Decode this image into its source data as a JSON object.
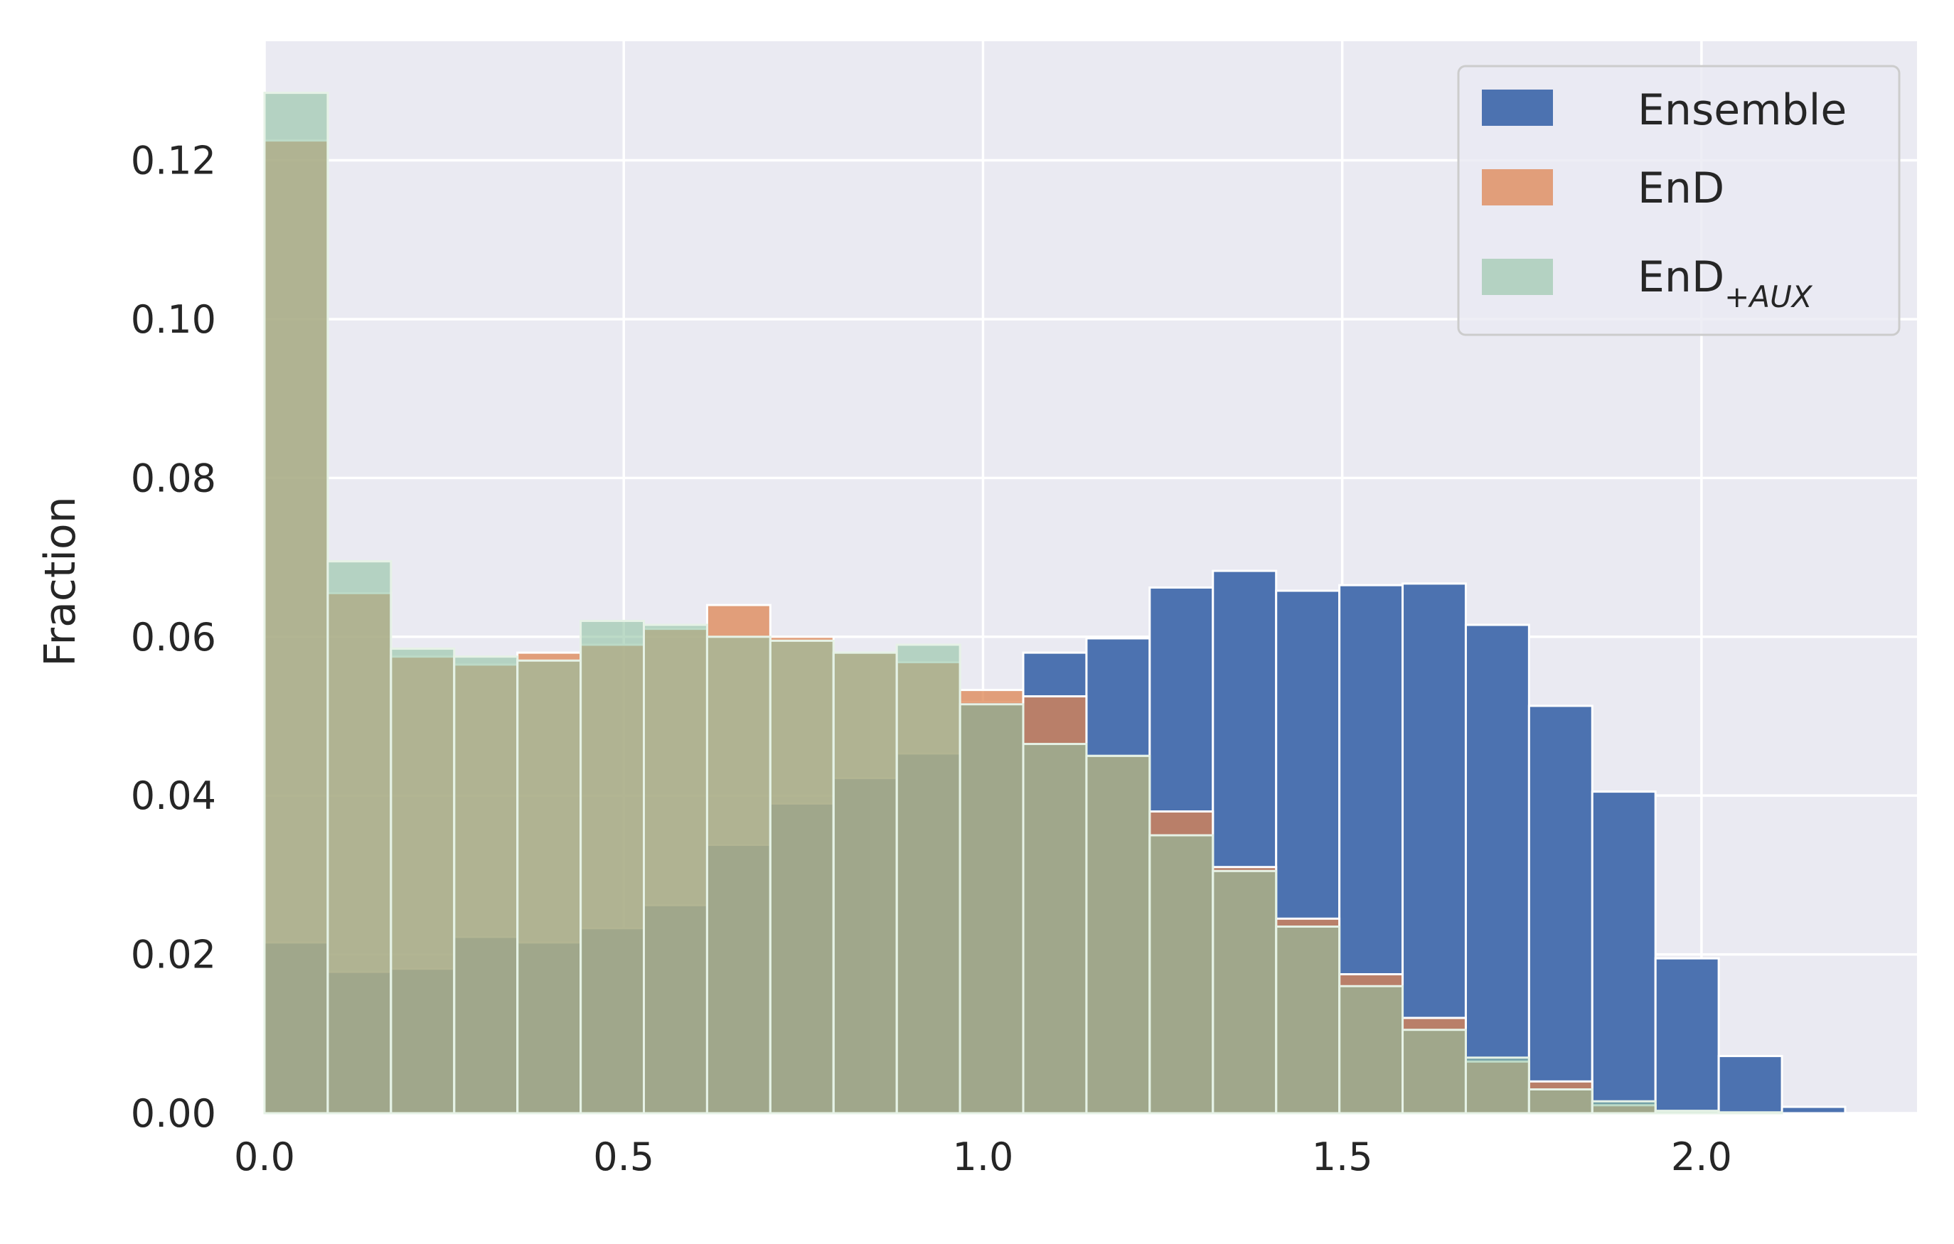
{
  "chart_data": {
    "type": "bar",
    "subtype": "overlaid-histogram",
    "title": "",
    "xlabel": "",
    "ylabel": "Fraction",
    "xlim": [
      0.0,
      2.3
    ],
    "ylim": [
      0.0,
      0.135
    ],
    "x_ticks": [
      "0.0",
      "0.5",
      "1.0",
      "1.5",
      "2.0"
    ],
    "y_ticks": [
      "0.00",
      "0.02",
      "0.04",
      "0.06",
      "0.08",
      "0.10",
      "0.12"
    ],
    "grid": true,
    "legend_position": "top-right",
    "bin_width": 0.088,
    "bin_starts": [
      0.0,
      0.088,
      0.176,
      0.264,
      0.352,
      0.44,
      0.528,
      0.616,
      0.704,
      0.792,
      0.88,
      0.968,
      1.056,
      1.144,
      1.232,
      1.32,
      1.408,
      1.496,
      1.584,
      1.672,
      1.76,
      1.848,
      1.936,
      2.024,
      2.112
    ],
    "series": [
      {
        "name": "Ensemble",
        "color": "#4c72b0",
        "opacity": 1.0,
        "values": [
          0.0215,
          0.0178,
          0.0182,
          0.0222,
          0.0215,
          0.0233,
          0.0262,
          0.0338,
          0.039,
          0.0422,
          0.0453,
          0.0518,
          0.058,
          0.0598,
          0.0662,
          0.0683,
          0.0658,
          0.0665,
          0.0667,
          0.0615,
          0.0513,
          0.0405,
          0.0195,
          0.0072,
          0.0008
        ]
      },
      {
        "name": "EnD",
        "color": "#dd8452",
        "opacity": 0.75,
        "values": [
          0.1225,
          0.0655,
          0.0575,
          0.0565,
          0.058,
          0.059,
          0.061,
          0.064,
          0.06,
          0.058,
          0.0568,
          0.0533,
          0.0525,
          0.045,
          0.038,
          0.031,
          0.0245,
          0.0175,
          0.012,
          0.0065,
          0.004,
          0.001,
          0.0002,
          0.0001,
          0.0
        ]
      },
      {
        "name": "EnD",
        "name_subscript": "+AUX",
        "color": "#8fc1a2",
        "opacity": 0.6,
        "values": [
          0.1285,
          0.0695,
          0.0585,
          0.0575,
          0.057,
          0.062,
          0.0615,
          0.06,
          0.0595,
          0.058,
          0.059,
          0.0515,
          0.0465,
          0.045,
          0.035,
          0.0305,
          0.0235,
          0.016,
          0.0105,
          0.007,
          0.003,
          0.0015,
          0.0003,
          0.0001,
          0.0
        ]
      }
    ]
  }
}
